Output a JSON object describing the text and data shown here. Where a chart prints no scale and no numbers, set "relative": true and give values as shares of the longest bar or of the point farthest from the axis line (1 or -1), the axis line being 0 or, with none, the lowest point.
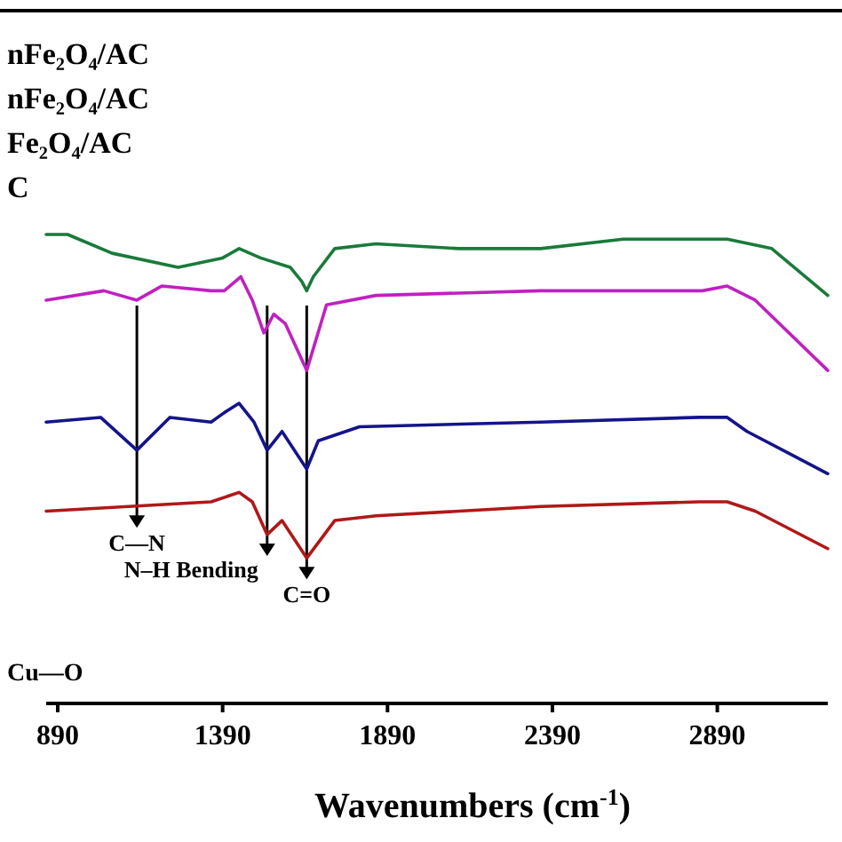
{
  "chart_data": {
    "type": "line",
    "relative": true,
    "xlabel": "Wavenumbers (cm$^{-1}$)",
    "xlim": [
      855,
      3225
    ],
    "xticks": [
      890,
      1390,
      1890,
      2390,
      2890
    ],
    "tick_labels": "x",
    "annotations": [
      "nFe₂O₄/AC",
      "nFe₂O₄/AC",
      "Fe₂O₄/AC",
      "C",
      {
        "text": "C—N",
        "x": 1130,
        "y": 0.42
      },
      {
        "text": "N–H Bending",
        "x": 1525,
        "y": 0.36
      },
      {
        "text": "C=O",
        "x": 1645,
        "y": 0.31
      },
      "Cu—O"
    ],
    "series": [
      {
        "color": "#1a7a3a",
        "x": [
          855,
          920,
          1055,
          1255,
          1390,
          1440,
          1505,
          1595,
          1630,
          1645,
          1665,
          1730,
          1855,
          2105,
          2355,
          2605,
          2920,
          3055,
          3225
        ],
        "values": [
          1.0,
          1.0,
          0.96,
          0.93,
          0.95,
          0.97,
          0.95,
          0.93,
          0.9,
          0.88,
          0.91,
          0.97,
          0.98,
          0.97,
          0.97,
          0.99,
          0.99,
          0.97,
          0.87
        ]
      },
      {
        "color": "#c020c0",
        "x": [
          855,
          1030,
          1130,
          1205,
          1355,
          1395,
          1445,
          1480,
          1515,
          1545,
          1580,
          1645,
          1705,
          1855,
          2355,
          2845,
          2920,
          3005,
          3225
        ],
        "values": [
          0.86,
          0.88,
          0.86,
          0.89,
          0.88,
          0.88,
          0.91,
          0.86,
          0.79,
          0.83,
          0.81,
          0.71,
          0.85,
          0.87,
          0.88,
          0.88,
          0.89,
          0.86,
          0.71
        ]
      },
      {
        "color": "#14148c",
        "x": [
          855,
          1020,
          1130,
          1230,
          1355,
          1395,
          1440,
          1485,
          1525,
          1570,
          1645,
          1680,
          1805,
          2355,
          2835,
          2920,
          2980,
          3225
        ],
        "values": [
          0.6,
          0.61,
          0.54,
          0.61,
          0.6,
          0.62,
          0.64,
          0.6,
          0.54,
          0.58,
          0.5,
          0.56,
          0.59,
          0.6,
          0.61,
          0.61,
          0.58,
          0.49
        ]
      },
      {
        "color": "#b01818",
        "x": [
          855,
          1105,
          1355,
          1440,
          1480,
          1525,
          1570,
          1645,
          1730,
          1855,
          2355,
          2835,
          2920,
          3005,
          3225
        ],
        "values": [
          0.41,
          0.42,
          0.43,
          0.45,
          0.43,
          0.36,
          0.39,
          0.31,
          0.39,
          0.4,
          0.42,
          0.43,
          0.43,
          0.41,
          0.33
        ]
      }
    ],
    "grid": false,
    "legend": false,
    "marker": "none",
    "line_style": "solid"
  }
}
